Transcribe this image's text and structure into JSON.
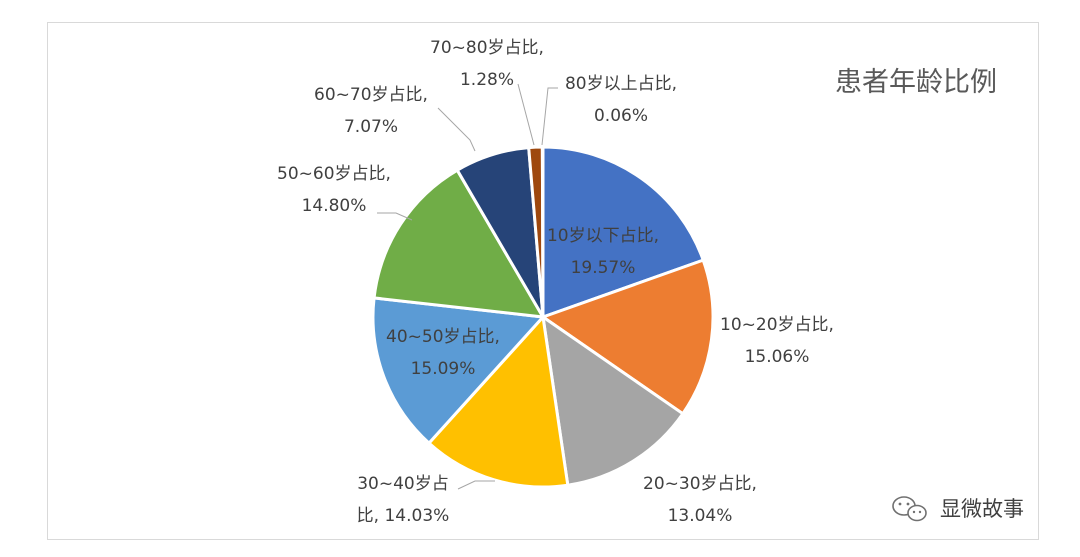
{
  "chart_data": {
    "type": "pie",
    "title": "患者年龄比例",
    "series": [
      {
        "name": "患者年龄比例",
        "slices": [
          {
            "label_line1": "10岁以下占比,",
            "label_line2": "19.57%",
            "value": 19.57,
            "color": "#4472c4"
          },
          {
            "label_line1": "10~20岁占比,",
            "label_line2": "15.06%",
            "value": 15.06,
            "color": "#ed7d31"
          },
          {
            "label_line1": "20~30岁占比,",
            "label_line2": "13.04%",
            "value": 13.04,
            "color": "#a5a5a5"
          },
          {
            "label_line1": "30~40岁占",
            "label_line2": "比, 14.03%",
            "value": 14.03,
            "color": "#ffc000"
          },
          {
            "label_line1": "40~50岁占比,",
            "label_line2": "15.09%",
            "value": 15.09,
            "color": "#5b9bd5"
          },
          {
            "label_line1": "50~60岁占比,",
            "label_line2": "14.80%",
            "value": 14.8,
            "color": "#70ad47"
          },
          {
            "label_line1": "60~70岁占比,",
            "label_line2": "7.07%",
            "value": 7.07,
            "color": "#264478"
          },
          {
            "label_line1": "70~80岁占比,",
            "label_line2": "1.28%",
            "value": 1.28,
            "color": "#9e480e"
          },
          {
            "label_line1": "80岁以上占比,",
            "label_line2": "0.06%",
            "value": 0.06,
            "color": "#636363"
          }
        ]
      }
    ]
  },
  "watermark": {
    "text": "显微故事",
    "icon": "wechat-icon"
  }
}
